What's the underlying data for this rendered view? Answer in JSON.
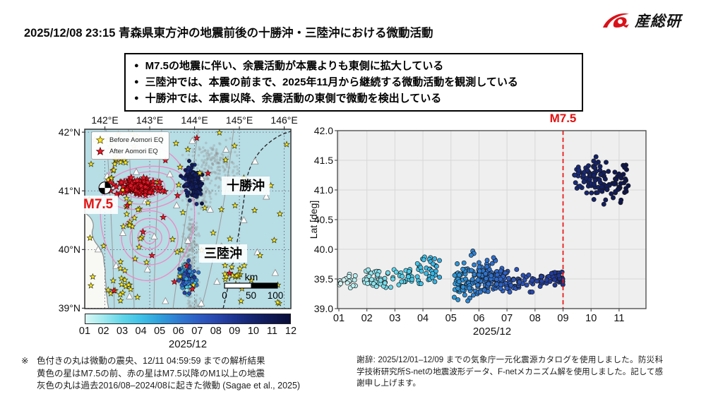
{
  "header": {
    "title": "2025/12/08 23:15 青森県東方沖の地震前後の十勝沖・三陸沖における微動活動",
    "logo_text": "産総研"
  },
  "summary_box": {
    "bullets": [
      "M7.5の地震に伴い、余震活動が本震よりも東側に拡大している",
      "三陸沖では、本震の前まで、2025年11月から継続する微動活動を観測している",
      "十勝沖では、本震以降、余震活動の東側で微動を検出している"
    ]
  },
  "map": {
    "lon_ticks": [
      "142°E",
      "143°E",
      "144°E",
      "145°E",
      "146°E"
    ],
    "lat_ticks": [
      "42°N",
      "41°N",
      "40°N",
      "39°N"
    ],
    "legend": [
      {
        "label": "Before Aomori EQ",
        "marker": "star",
        "color": "#ffe92a"
      },
      {
        "label": "After Aomori EQ",
        "marker": "star",
        "color": "#e8192c"
      }
    ],
    "region_labels": {
      "tokachi": "十勝沖",
      "sanriku": "三陸沖"
    },
    "mainshock_label": "M7.5",
    "scalebar": {
      "unit": "km",
      "tick_labels": [
        "0",
        "50",
        "100"
      ]
    },
    "colorbar": {
      "tick_labels": [
        "01",
        "02",
        "03",
        "04",
        "05",
        "06",
        "07",
        "08",
        "09",
        "10",
        "11",
        "12"
      ],
      "axis_label": "2025/12"
    }
  },
  "chart_data": [
    {
      "type": "scatter",
      "name": "map-epicenters",
      "title": "青森県東方沖地震前後の微動・地震分布図",
      "lon_range": [
        141.55,
        146.15
      ],
      "lat_range": [
        38.99,
        42.05
      ],
      "tremor_past_gray": [
        {
          "c": [
            144.45,
            41.45
          ],
          "s": [
            0.4,
            0.28
          ],
          "n": 200
        },
        {
          "c": [
            144.05,
            40.95
          ],
          "s": [
            0.26,
            0.22
          ],
          "n": 110
        },
        {
          "c": [
            143.9,
            39.75
          ],
          "s": [
            0.16,
            0.4
          ],
          "n": 200
        },
        {
          "c": [
            143.95,
            40.35
          ],
          "s": [
            0.12,
            0.15
          ],
          "n": 45
        },
        {
          "c": [
            144.0,
            39.05
          ],
          "s": [
            0.14,
            0.1
          ],
          "n": 45
        }
      ],
      "tremor_tokachi": {
        "c": [
          143.95,
          41.15
        ],
        "s": [
          0.15,
          0.2
        ],
        "n": 130,
        "day": [
          9.5,
          11.5
        ]
      },
      "tremor_sanriku": {
        "c": [
          143.85,
          39.55
        ],
        "s": [
          0.12,
          0.17
        ],
        "n": 145,
        "day": [
          1,
          9
        ]
      },
      "aftershocks_red": {
        "c": [
          142.75,
          41.08
        ],
        "s": [
          0.36,
          0.11
        ],
        "n": 112
      },
      "aftershock_extras": [
        [
          143.3,
          40.55
        ],
        [
          142.85,
          40.3
        ],
        [
          143.05,
          39.9
        ],
        [
          143.55,
          39.45
        ],
        [
          143.82,
          39.72
        ],
        [
          144.78,
          39.6
        ],
        [
          143.95,
          39.33
        ],
        [
          142.5,
          40.75
        ],
        [
          143.35,
          41.52
        ],
        [
          144.05,
          41.9
        ],
        [
          142.2,
          39.3
        ],
        [
          143.62,
          40.92
        ],
        [
          144.3,
          41.3
        ]
      ],
      "pre_eq_yellow_uniform": {
        "lon": [
          141.62,
          146.1
        ],
        "lat": [
          39.02,
          42.0
        ],
        "n": 72
      },
      "pre_eq_yellow_clumps": [
        {
          "c": [
            142.3,
            39.35
          ],
          "s": [
            0.22,
            0.18
          ],
          "n": 14
        },
        {
          "c": [
            142.35,
            41.5
          ],
          "s": [
            0.28,
            0.13
          ],
          "n": 10
        },
        {
          "c": [
            144.9,
            39.5
          ],
          "s": [
            0.22,
            0.13
          ],
          "n": 12
        },
        {
          "c": [
            142.5,
            40.6
          ],
          "s": [
            0.18,
            0.28
          ],
          "n": 10
        }
      ],
      "stations": [
        [
          142.25,
          41.75
        ],
        [
          143.1,
          41.8
        ],
        [
          143.95,
          41.85
        ],
        [
          144.7,
          41.7
        ],
        [
          145.35,
          41.5
        ],
        [
          142.05,
          41.25
        ],
        [
          142.7,
          41.32
        ],
        [
          143.45,
          41.28
        ],
        [
          144.15,
          41.22
        ],
        [
          144.95,
          41.05
        ],
        [
          142.2,
          40.78
        ],
        [
          142.9,
          40.82
        ],
        [
          143.6,
          40.75
        ],
        [
          144.35,
          40.68
        ],
        [
          145.1,
          40.5
        ],
        [
          142.4,
          40.28
        ],
        [
          143.1,
          40.22
        ],
        [
          143.85,
          40.15
        ],
        [
          144.6,
          40.05
        ],
        [
          145.4,
          39.95
        ],
        [
          142.25,
          39.72
        ],
        [
          142.95,
          39.66
        ],
        [
          143.7,
          39.58
        ],
        [
          144.5,
          39.45
        ],
        [
          142.55,
          39.2
        ],
        [
          143.35,
          39.12
        ],
        [
          144.15,
          39.08
        ],
        [
          145.6,
          40.9
        ],
        [
          145.8,
          39.6
        ],
        [
          141.85,
          40.0
        ]
      ],
      "mainshock_epicenter": [
        142.0,
        41.05
      ],
      "slip_contours": [
        {
          "c": [
            142.9,
            41.05
          ],
          "rx": [
            0.92,
            0.66,
            0.44,
            0.24
          ],
          "ry": [
            0.36,
            0.27,
            0.17,
            0.1
          ],
          "rot": -8
        },
        {
          "c": [
            143.0,
            40.2
          ],
          "rx": [
            0.63,
            0.44,
            0.27,
            0.13
          ],
          "ry": [
            0.46,
            0.33,
            0.19,
            0.1
          ],
          "rot": 0
        },
        {
          "c": [
            142.95,
            40.62
          ],
          "rx": [
            1.05
          ],
          "ry": [
            1.15
          ],
          "rot": 0
        },
        {
          "c": [
            142.05,
            41.65
          ],
          "rx": [
            0.09
          ],
          "ry": [
            0.07
          ],
          "rot": 0
        }
      ]
    },
    {
      "type": "scatter",
      "name": "tremor-latitude-vs-time",
      "title": "M7.5",
      "xlabel": "2025/12",
      "ylabel": "Lat [deg]",
      "x_ticks": [
        "01",
        "02",
        "03",
        "04",
        "05",
        "06",
        "07",
        "08",
        "09",
        "10",
        "11"
      ],
      "xlim_days": [
        0.95,
        11.96
      ],
      "ylim": [
        39.0,
        42.0
      ],
      "y_ticks": [
        "42.0",
        "41.5",
        "41.0",
        "40.5",
        "40.0",
        "39.5",
        "39.0"
      ],
      "grid": true,
      "event_line": {
        "x_day": 9.0,
        "label": "M7.5"
      },
      "clusters": [
        {
          "x": [
            1.0,
            1.6
          ],
          "lat": [
            39.33,
            39.58
          ],
          "n": 18
        },
        {
          "x": [
            1.9,
            3.05
          ],
          "lat": [
            39.3,
            39.73
          ],
          "n": 48
        },
        {
          "x": [
            3.1,
            3.65
          ],
          "lat": [
            39.37,
            39.66
          ],
          "n": 24
        },
        {
          "x": [
            3.8,
            4.6
          ],
          "lat": [
            39.33,
            39.87
          ],
          "n": 36
        },
        {
          "x": [
            5.1,
            6.05
          ],
          "lat": [
            39.17,
            39.77
          ],
          "n": 75
        },
        {
          "x": [
            5.95,
            6.65
          ],
          "lat": [
            39.28,
            39.82
          ],
          "n": 85
        },
        {
          "x": [
            6.6,
            7.35
          ],
          "lat": [
            39.28,
            39.68
          ],
          "n": 55
        },
        {
          "x": [
            7.35,
            8.3
          ],
          "lat": [
            39.28,
            39.6
          ],
          "n": 35
        },
        {
          "x": [
            8.35,
            9.0
          ],
          "lat": [
            39.38,
            39.62
          ],
          "n": 32
        },
        {
          "x": [
            9.4,
            10.15
          ],
          "lat": [
            40.95,
            41.5
          ],
          "n": 40
        },
        {
          "x": [
            10.0,
            11.35
          ],
          "lat": [
            40.76,
            41.56
          ],
          "n": 82
        }
      ],
      "outliers": [
        [
          5.78,
          39.97
        ],
        [
          5.82,
          39.93
        ],
        [
          5.72,
          39.9
        ],
        [
          6.52,
          39.86
        ],
        [
          4.42,
          39.84
        ],
        [
          5.25,
          39.15
        ],
        [
          5.6,
          39.13
        ]
      ]
    }
  ],
  "footnotes": {
    "marker": "※",
    "left_lines": [
      "色付きの丸は微動の震央、12/11 04:59:59 までの解析結果",
      "黄色の星はM7.5の前、赤の星はM7.5以降のM1以上の地震",
      "灰色の丸は過去2016/08–2024/08に起きた微動 (Sagae et al., 2025)"
    ],
    "acknowledgment": "謝辞: 2025/12/01–12/09 までの気象庁一元化震源カタログを使用しました。防災科学技術研究所S-netの地震波形データ、F-netメカニズム解を使用しました。記して感謝申し上げます。"
  },
  "colors": {
    "accent_red": "#e41414",
    "star_yellow": "#ffe92a",
    "star_red": "#e8192c",
    "ocean": "#b7dde5",
    "land": "#f8f8f5",
    "coast": "#8a8a8a",
    "plot_bg": "#efefef",
    "grid": "#d7d7d7",
    "past_tremor_gray": "#919191",
    "contour_pink": "#f27ec2",
    "event_line": "#ee1a1a",
    "cmap": [
      [
        1,
        "#d9f7f5"
      ],
      [
        2,
        "#9fe9ee"
      ],
      [
        3,
        "#60d5e9"
      ],
      [
        4,
        "#3fc0e6"
      ],
      [
        5,
        "#2f9fdb"
      ],
      [
        6,
        "#2f7bd2"
      ],
      [
        7,
        "#2e5ec4"
      ],
      [
        8,
        "#2847ad"
      ],
      [
        9,
        "#1d338f"
      ],
      [
        10,
        "#15246e"
      ],
      [
        11,
        "#0f1852"
      ],
      [
        12,
        "#090e38"
      ]
    ]
  }
}
